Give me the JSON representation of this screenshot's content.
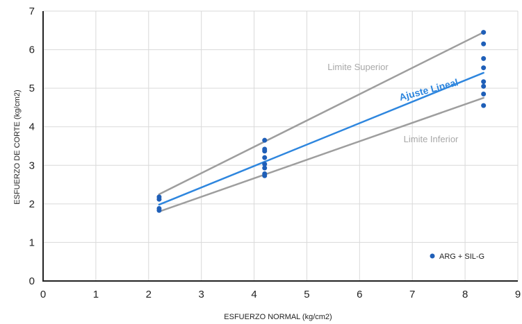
{
  "chart_data": {
    "type": "scatter",
    "xlabel": "ESFUERZO NORMAL (kg/cm2)",
    "ylabel": "ESFUERZO DE CORTE (kg/cm2)",
    "xlim": [
      0,
      9
    ],
    "ylim": [
      0,
      7
    ],
    "xticks": [
      "0",
      "1",
      "2",
      "3",
      "4",
      "5",
      "6",
      "7",
      "8",
      "9"
    ],
    "yticks": [
      "0",
      "1",
      "2",
      "3",
      "4",
      "5",
      "6",
      "7"
    ],
    "grid": true,
    "legend_position": "bottom-right",
    "series": [
      {
        "name": "ARG + SIL-G",
        "color": "#1f5fb8",
        "points": [
          [
            2.2,
            2.18
          ],
          [
            2.2,
            2.12
          ],
          [
            2.2,
            1.88
          ],
          [
            2.2,
            1.83
          ],
          [
            4.2,
            3.65
          ],
          [
            4.2,
            3.42
          ],
          [
            4.2,
            3.37
          ],
          [
            4.2,
            3.2
          ],
          [
            4.2,
            3.03
          ],
          [
            4.2,
            2.93
          ],
          [
            4.2,
            2.78
          ],
          [
            4.2,
            2.73
          ],
          [
            8.35,
            6.45
          ],
          [
            8.35,
            6.15
          ],
          [
            8.35,
            5.77
          ],
          [
            8.35,
            5.53
          ],
          [
            8.35,
            5.17
          ],
          [
            8.35,
            5.05
          ],
          [
            8.35,
            4.85
          ],
          [
            8.35,
            4.55
          ]
        ]
      }
    ],
    "lines": [
      {
        "label": "Limite Superior",
        "color": "#9e9e9e",
        "from": [
          2.2,
          2.25
        ],
        "to": [
          8.35,
          6.45
        ]
      },
      {
        "label": "Ajuste Lineal",
        "color": "#2e86de",
        "from": [
          2.2,
          1.98
        ],
        "to": [
          8.35,
          5.4
        ]
      },
      {
        "label": "Limite Inferior",
        "color": "#9e9e9e",
        "from": [
          2.2,
          1.8
        ],
        "to": [
          8.35,
          4.75
        ]
      }
    ]
  }
}
